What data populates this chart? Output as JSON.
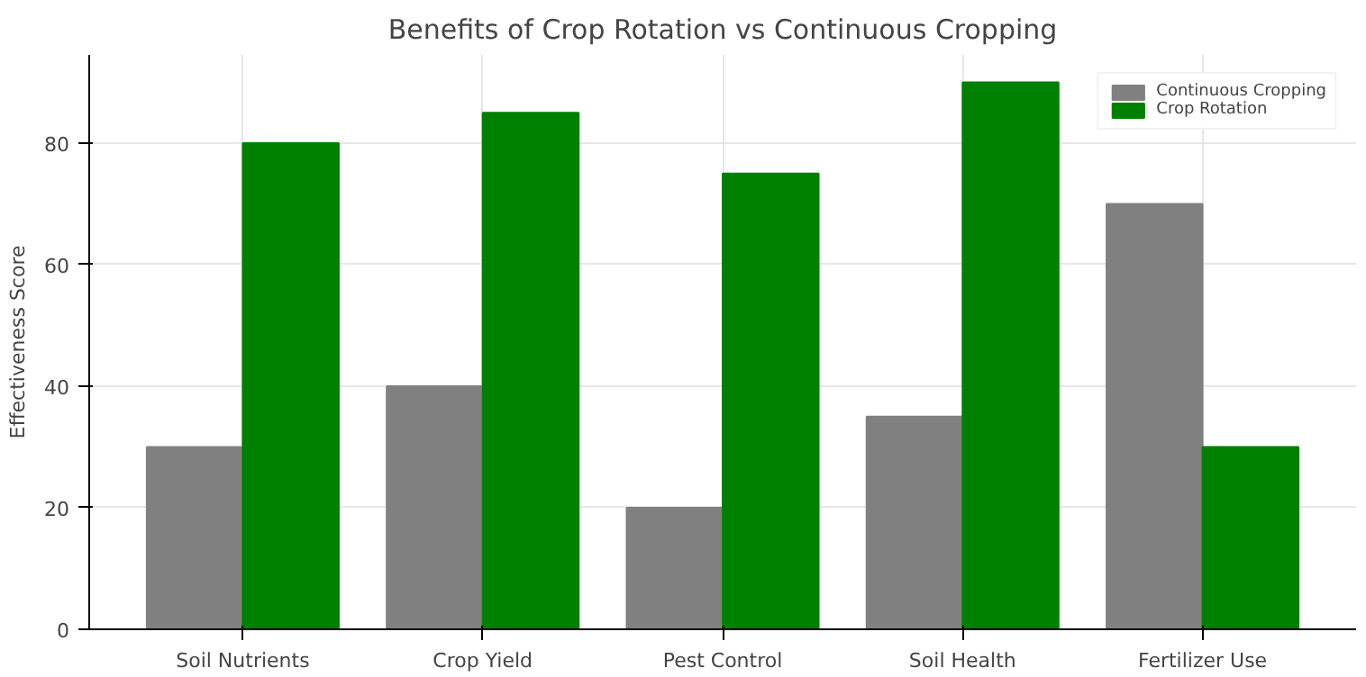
{
  "chart_data": {
    "type": "bar",
    "title": "Benefits of Crop Rotation vs Continuous Cropping",
    "ylabel": "Effectiveness Score",
    "categories": [
      "Soil Nutrients",
      "Crop Yield",
      "Pest Control",
      "Soil Health",
      "Fertilizer Use"
    ],
    "series": [
      {
        "name": "Continuous Cropping",
        "color": "#808080",
        "values": [
          30,
          40,
          20,
          35,
          70
        ]
      },
      {
        "name": "Crop Rotation",
        "color": "#008000",
        "values": [
          80,
          85,
          75,
          90,
          30
        ]
      }
    ],
    "ylim": [
      0,
      94.5
    ],
    "yticks": [
      0,
      20,
      40,
      60,
      80
    ],
    "grid": true,
    "legend": "top right"
  }
}
